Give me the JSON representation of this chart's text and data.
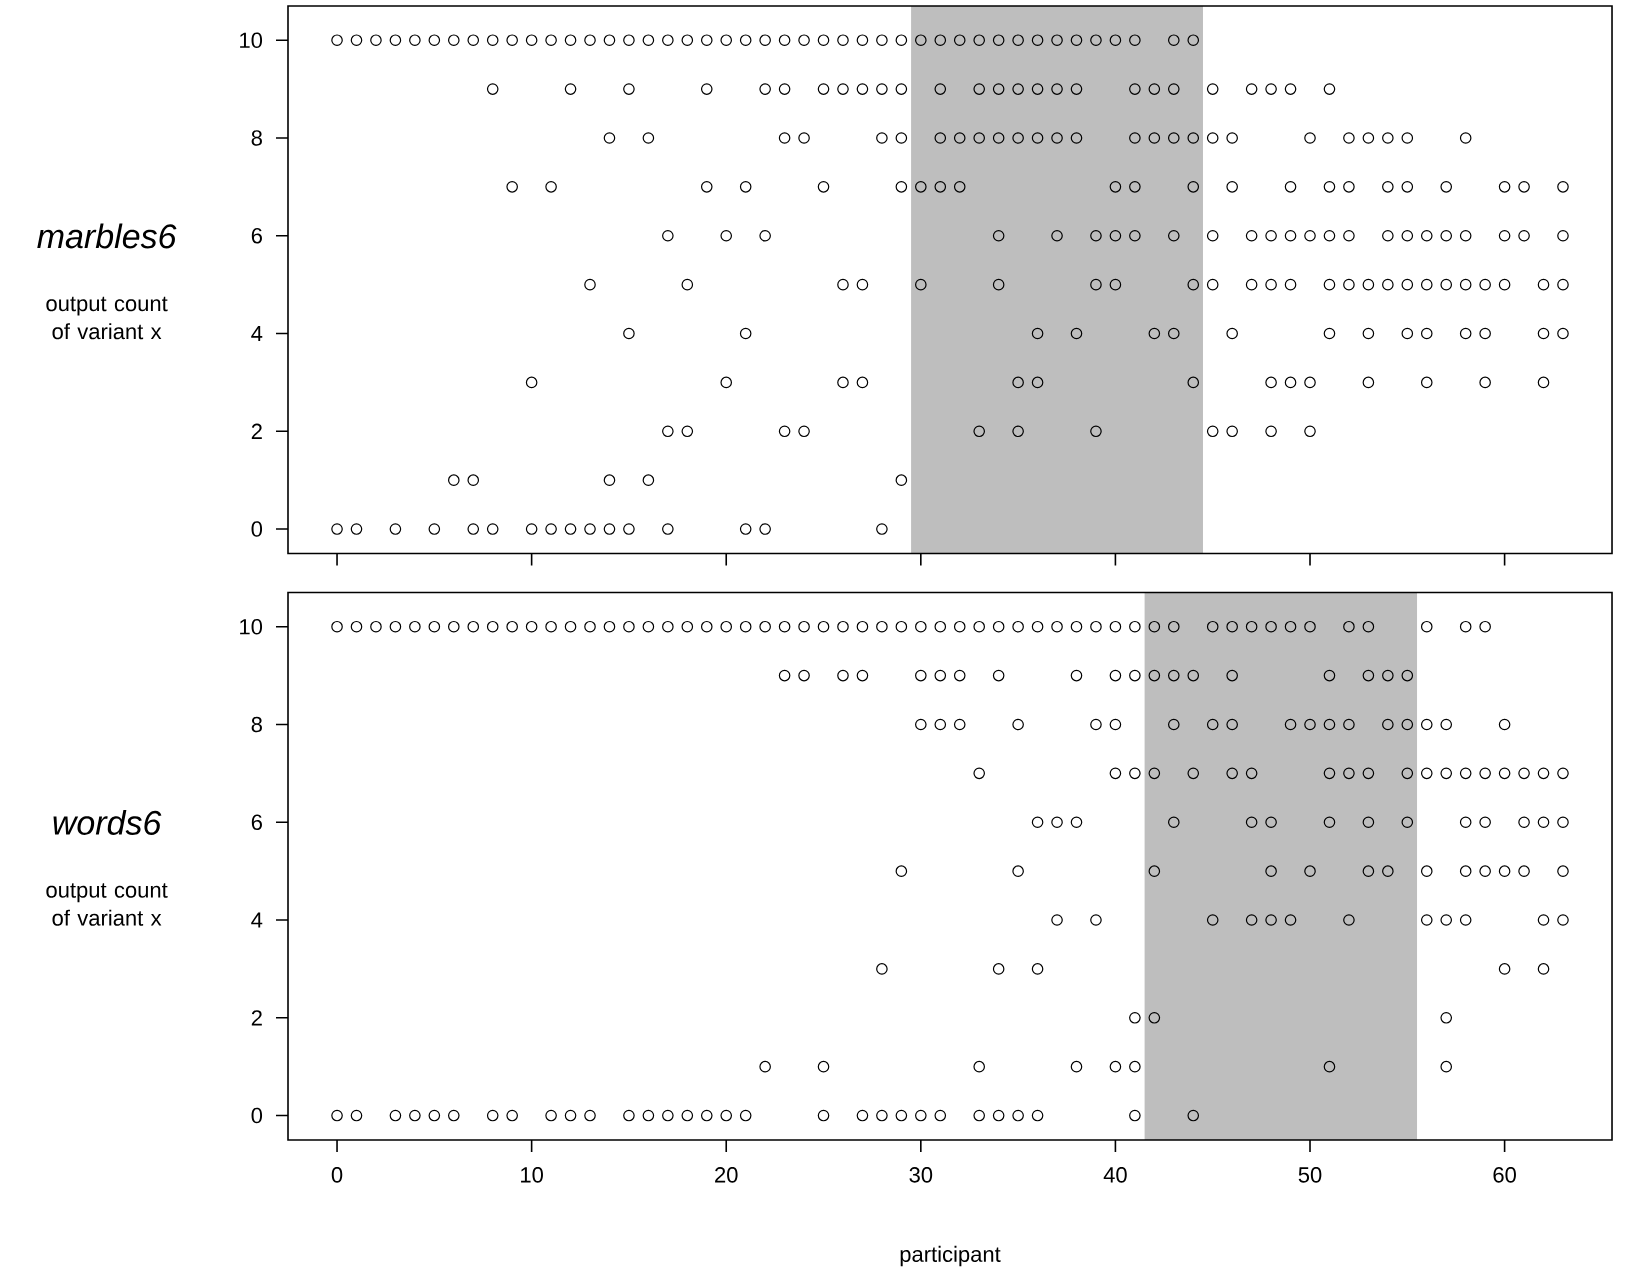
{
  "chart_data": [
    {
      "type": "scatter",
      "title": "marbles6",
      "ylabel": "output count of variant x",
      "color": "#000000",
      "marker": "circle",
      "xlim": [
        -2.52,
        65.52
      ],
      "ylim": [
        -0.5,
        10.7
      ],
      "xticks": [
        0,
        10,
        20,
        30,
        40,
        50,
        60
      ],
      "yticks": [
        0,
        2,
        4,
        6,
        8,
        10
      ],
      "tick_labels": "y",
      "bands": [
        {
          "axis": "x",
          "from": 29.5,
          "to": 44.5,
          "color": "#bebebe"
        }
      ],
      "x": [
        0,
        1,
        2,
        3,
        4,
        5,
        6,
        7,
        8,
        9,
        10,
        11,
        12,
        13,
        14,
        15,
        16,
        17,
        18,
        19,
        20,
        21,
        22,
        23,
        24,
        25,
        26,
        27,
        28,
        29,
        30,
        31,
        32,
        33,
        34,
        35,
        36,
        37,
        38,
        39,
        40,
        41,
        43,
        44,
        8,
        12,
        15,
        19,
        22,
        23,
        25,
        26,
        27,
        28,
        29,
        31,
        33,
        34,
        35,
        36,
        37,
        38,
        41,
        42,
        43,
        45,
        47,
        48,
        49,
        51,
        14,
        16,
        23,
        24,
        28,
        29,
        31,
        32,
        33,
        34,
        35,
        36,
        37,
        38,
        41,
        42,
        43,
        44,
        45,
        46,
        50,
        52,
        53,
        54,
        55,
        58,
        9,
        11,
        19,
        21,
        25,
        29,
        30,
        31,
        32,
        40,
        41,
        44,
        46,
        49,
        51,
        52,
        54,
        55,
        57,
        60,
        61,
        63,
        17,
        20,
        22,
        34,
        37,
        39,
        40,
        41,
        43,
        45,
        47,
        48,
        49,
        50,
        51,
        52,
        54,
        55,
        56,
        57,
        58,
        60,
        61,
        63,
        13,
        18,
        26,
        27,
        30,
        34,
        39,
        40,
        44,
        45,
        47,
        48,
        49,
        51,
        52,
        53,
        54,
        55,
        56,
        57,
        58,
        59,
        60,
        62,
        63,
        15,
        21,
        36,
        38,
        42,
        43,
        46,
        51,
        53,
        55,
        56,
        58,
        59,
        62,
        63,
        10,
        20,
        26,
        27,
        35,
        36,
        44,
        48,
        49,
        50,
        53,
        56,
        59,
        62,
        17,
        18,
        23,
        24,
        33,
        35,
        39,
        45,
        46,
        48,
        50,
        6,
        7,
        14,
        16,
        29,
        0,
        1,
        3,
        5,
        7,
        8,
        10,
        11,
        12,
        13,
        14,
        15,
        17,
        21,
        22,
        28
      ],
      "values": [
        10,
        10,
        10,
        10,
        10,
        10,
        10,
        10,
        10,
        10,
        10,
        10,
        10,
        10,
        10,
        10,
        10,
        10,
        10,
        10,
        10,
        10,
        10,
        10,
        10,
        10,
        10,
        10,
        10,
        10,
        10,
        10,
        10,
        10,
        10,
        10,
        10,
        10,
        10,
        10,
        10,
        10,
        10,
        10,
        9,
        9,
        9,
        9,
        9,
        9,
        9,
        9,
        9,
        9,
        9,
        9,
        9,
        9,
        9,
        9,
        9,
        9,
        9,
        9,
        9,
        9,
        9,
        9,
        9,
        9,
        8,
        8,
        8,
        8,
        8,
        8,
        8,
        8,
        8,
        8,
        8,
        8,
        8,
        8,
        8,
        8,
        8,
        8,
        8,
        8,
        8,
        8,
        8,
        8,
        8,
        8,
        7,
        7,
        7,
        7,
        7,
        7,
        7,
        7,
        7,
        7,
        7,
        7,
        7,
        7,
        7,
        7,
        7,
        7,
        7,
        7,
        7,
        7,
        6,
        6,
        6,
        6,
        6,
        6,
        6,
        6,
        6,
        6,
        6,
        6,
        6,
        6,
        6,
        6,
        6,
        6,
        6,
        6,
        6,
        6,
        6,
        6,
        5,
        5,
        5,
        5,
        5,
        5,
        5,
        5,
        5,
        5,
        5,
        5,
        5,
        5,
        5,
        5,
        5,
        5,
        5,
        5,
        5,
        5,
        5,
        5,
        5,
        4,
        4,
        4,
        4,
        4,
        4,
        4,
        4,
        4,
        4,
        4,
        4,
        4,
        4,
        4,
        3,
        3,
        3,
        3,
        3,
        3,
        3,
        3,
        3,
        3,
        3,
        3,
        3,
        3,
        2,
        2,
        2,
        2,
        2,
        2,
        2,
        2,
        2,
        2,
        2,
        1,
        1,
        1,
        1,
        1,
        0,
        0,
        0,
        0,
        0,
        0,
        0,
        0,
        0,
        0,
        0,
        0,
        0,
        0,
        0,
        0
      ]
    },
    {
      "type": "scatter",
      "title": "words6",
      "ylabel": "output count of variant x",
      "xlabel": "participant",
      "color": "#000000",
      "marker": "circle",
      "xlim": [
        -2.52,
        65.52
      ],
      "ylim": [
        -0.5,
        10.7
      ],
      "xticks": [
        0,
        10,
        20,
        30,
        40,
        50,
        60
      ],
      "yticks": [
        0,
        2,
        4,
        6,
        8,
        10
      ],
      "bands": [
        {
          "axis": "x",
          "from": 41.5,
          "to": 55.5,
          "color": "#bebebe"
        }
      ],
      "x": [
        0,
        1,
        2,
        3,
        4,
        5,
        6,
        7,
        8,
        9,
        10,
        11,
        12,
        13,
        14,
        15,
        16,
        17,
        18,
        19,
        20,
        21,
        22,
        23,
        24,
        25,
        26,
        27,
        28,
        29,
        30,
        31,
        32,
        33,
        34,
        35,
        36,
        37,
        38,
        39,
        40,
        41,
        42,
        43,
        45,
        46,
        47,
        48,
        49,
        50,
        52,
        53,
        56,
        58,
        59,
        23,
        24,
        26,
        27,
        30,
        31,
        32,
        34,
        38,
        40,
        41,
        42,
        43,
        44,
        46,
        51,
        53,
        54,
        55,
        30,
        31,
        32,
        35,
        39,
        40,
        43,
        45,
        46,
        49,
        50,
        51,
        52,
        54,
        55,
        56,
        57,
        60,
        33,
        40,
        41,
        42,
        44,
        46,
        47,
        51,
        52,
        53,
        55,
        56,
        57,
        58,
        59,
        60,
        61,
        62,
        63,
        36,
        37,
        38,
        43,
        47,
        48,
        51,
        53,
        55,
        58,
        59,
        61,
        62,
        63,
        29,
        35,
        42,
        48,
        50,
        53,
        54,
        56,
        58,
        59,
        60,
        61,
        63,
        37,
        39,
        45,
        47,
        48,
        49,
        52,
        56,
        57,
        58,
        62,
        63,
        28,
        34,
        36,
        60,
        62,
        41,
        42,
        57,
        22,
        25,
        33,
        38,
        40,
        41,
        51,
        57,
        0,
        1,
        3,
        4,
        5,
        6,
        8,
        9,
        11,
        12,
        13,
        15,
        16,
        17,
        18,
        19,
        20,
        21,
        25,
        27,
        28,
        29,
        30,
        31,
        33,
        34,
        35,
        36,
        41,
        44
      ],
      "values": [
        10,
        10,
        10,
        10,
        10,
        10,
        10,
        10,
        10,
        10,
        10,
        10,
        10,
        10,
        10,
        10,
        10,
        10,
        10,
        10,
        10,
        10,
        10,
        10,
        10,
        10,
        10,
        10,
        10,
        10,
        10,
        10,
        10,
        10,
        10,
        10,
        10,
        10,
        10,
        10,
        10,
        10,
        10,
        10,
        10,
        10,
        10,
        10,
        10,
        10,
        10,
        10,
        10,
        10,
        10,
        9,
        9,
        9,
        9,
        9,
        9,
        9,
        9,
        9,
        9,
        9,
        9,
        9,
        9,
        9,
        9,
        9,
        9,
        9,
        8,
        8,
        8,
        8,
        8,
        8,
        8,
        8,
        8,
        8,
        8,
        8,
        8,
        8,
        8,
        8,
        8,
        8,
        7,
        7,
        7,
        7,
        7,
        7,
        7,
        7,
        7,
        7,
        7,
        7,
        7,
        7,
        7,
        7,
        7,
        7,
        7,
        6,
        6,
        6,
        6,
        6,
        6,
        6,
        6,
        6,
        6,
        6,
        6,
        6,
        6,
        5,
        5,
        5,
        5,
        5,
        5,
        5,
        5,
        5,
        5,
        5,
        5,
        5,
        4,
        4,
        4,
        4,
        4,
        4,
        4,
        4,
        4,
        4,
        4,
        4,
        3,
        3,
        3,
        3,
        3,
        2,
        2,
        2,
        1,
        1,
        1,
        1,
        1,
        1,
        1,
        1,
        0,
        0,
        0,
        0,
        0,
        0,
        0,
        0,
        0,
        0,
        0,
        0,
        0,
        0,
        0,
        0,
        0,
        0,
        0,
        0,
        0,
        0,
        0,
        0,
        0,
        0,
        0,
        0,
        0,
        0
      ]
    }
  ]
}
